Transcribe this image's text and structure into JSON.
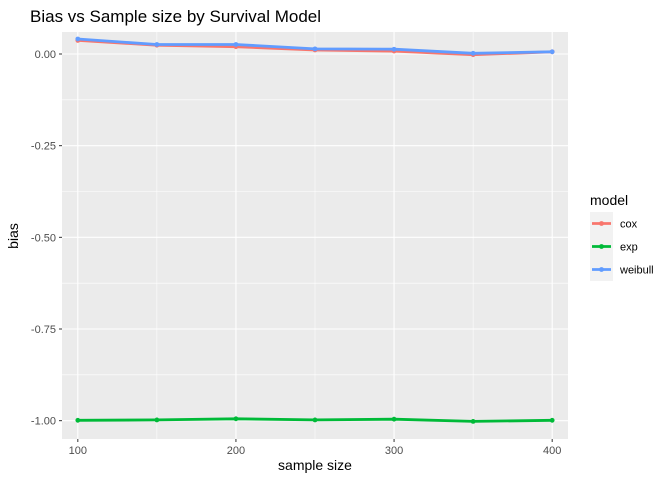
{
  "chart_data": {
    "type": "line",
    "title": "Bias vs Sample size by Survival Model",
    "xlabel": "sample size",
    "ylabel": "bias",
    "x": [
      100,
      150,
      200,
      250,
      300,
      350,
      400
    ],
    "x_ticks": [
      100,
      200,
      300,
      400
    ],
    "x_tick_labels": [
      "100",
      "200",
      "300",
      "400"
    ],
    "y_ticks": [
      0,
      -0.25,
      -0.5,
      -0.75,
      -1
    ],
    "y_tick_labels": [
      "0.00",
      "-0.25",
      "-0.50",
      "-0.75",
      "-1.00"
    ],
    "xlim": [
      90,
      410
    ],
    "ylim": [
      -1.05,
      0.06
    ],
    "grid": true,
    "legend_placement": "right",
    "legend_title": "model",
    "series": [
      {
        "name": "cox",
        "color": "#F8766D",
        "values": [
          0.037,
          0.024,
          0.02,
          0.011,
          0.008,
          -0.002,
          0.006
        ]
      },
      {
        "name": "exp",
        "color": "#00BA38",
        "values": [
          -0.999,
          -0.998,
          -0.995,
          -0.998,
          -0.996,
          -1.002,
          -0.999
        ]
      },
      {
        "name": "weibull",
        "color": "#619CFF",
        "values": [
          0.041,
          0.026,
          0.026,
          0.014,
          0.013,
          0.002,
          0.006
        ]
      }
    ],
    "panel_background": "#EBEBEB",
    "grid_color": "#FFFFFF"
  }
}
